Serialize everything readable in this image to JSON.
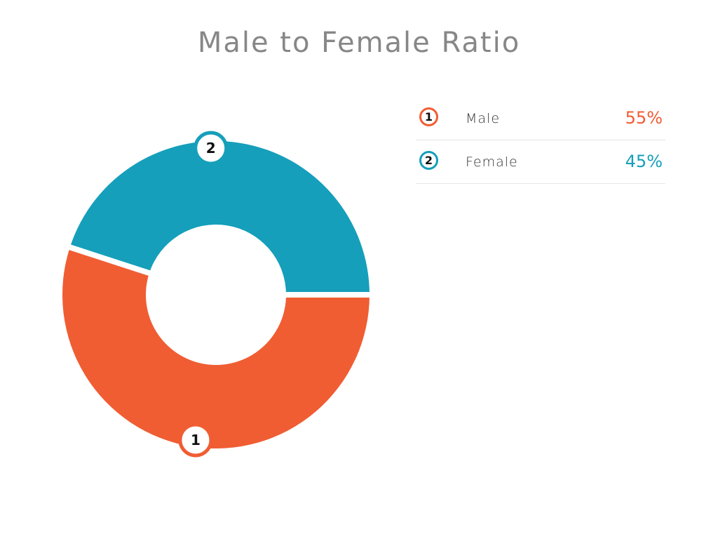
{
  "chart_data": {
    "type": "pie",
    "title": "Male to Female Ratio",
    "categories": [
      "Male",
      "Female"
    ],
    "values": [
      55,
      45
    ],
    "value_labels": [
      "55%",
      "45%"
    ],
    "markers": [
      "1",
      "2"
    ],
    "colors": [
      "#f05d33",
      "#159fba"
    ],
    "donut": true,
    "legend": "right"
  }
}
